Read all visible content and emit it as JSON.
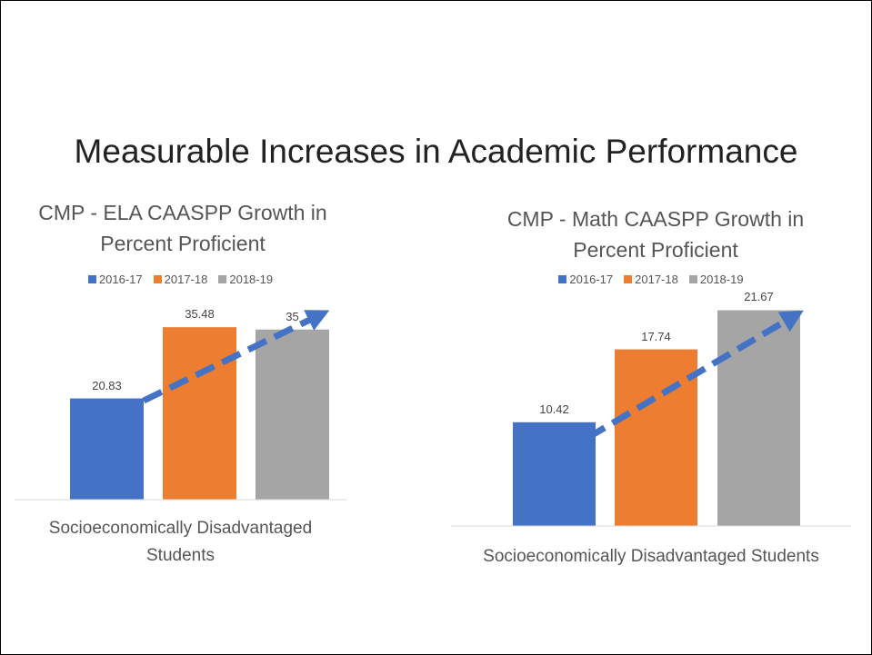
{
  "title": "Measurable Increases in Academic Performance",
  "chart_data": [
    {
      "type": "bar",
      "title": "CMP - ELA CAASPP Growth in Percent Proficient",
      "categories": [
        "Socioeconomically Disadvantaged Students"
      ],
      "series": [
        {
          "name": "2016-17",
          "color": "#4472c4",
          "values": [
            20.83
          ]
        },
        {
          "name": "2017-18",
          "color": "#ed7d31",
          "values": [
            35.48
          ]
        },
        {
          "name": "2018-19",
          "color": "#a5a5a5",
          "values": [
            35
          ]
        }
      ],
      "ylim": [
        0,
        40
      ],
      "legend": "top"
    },
    {
      "type": "bar",
      "title": "CMP - Math CAASPP Growth in Percent Proficient",
      "categories": [
        "Socioeconomically Disadvantaged Students"
      ],
      "series": [
        {
          "name": "2016-17",
          "color": "#4472c4",
          "values": [
            10.42
          ]
        },
        {
          "name": "2017-18",
          "color": "#ed7d31",
          "values": [
            17.74
          ]
        },
        {
          "name": "2018-19",
          "color": "#a5a5a5",
          "values": [
            21.67
          ]
        }
      ],
      "ylim": [
        0,
        25
      ],
      "legend": "top"
    }
  ]
}
